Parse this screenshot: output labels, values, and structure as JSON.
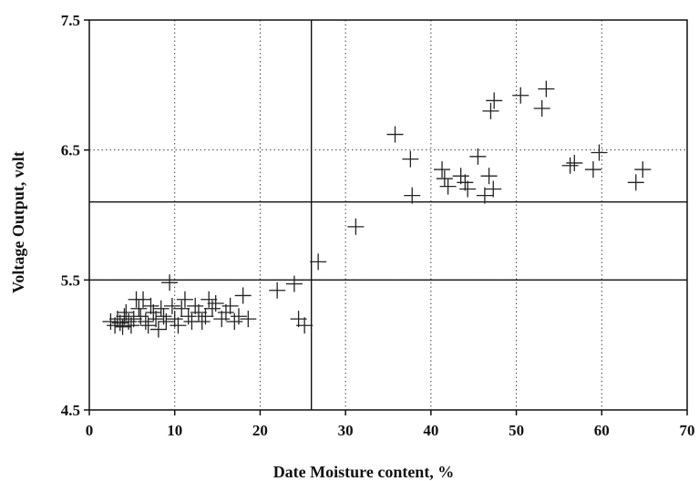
{
  "chart_data": {
    "type": "scatter",
    "title": "",
    "xlabel": "Date Moisture content, %",
    "ylabel": "Voltage Output, volt",
    "xlim": [
      0,
      70
    ],
    "ylim": [
      4.5,
      7.5
    ],
    "x_ticks": [
      "0",
      "10",
      "20",
      "30",
      "40",
      "50",
      "60",
      "70"
    ],
    "y_ticks": [
      "4.5",
      "5.5",
      "6.5",
      "7.5"
    ],
    "x_tick_values": [
      0,
      10,
      20,
      30,
      40,
      50,
      60,
      70
    ],
    "y_tick_values": [
      4.5,
      5.5,
      6.5,
      7.5
    ],
    "grid": true,
    "grid_style": "dotted",
    "marker": "plus",
    "colors": {
      "marker": "#222222",
      "reference_line": "#111111",
      "grid": "#444444"
    },
    "reference_lines": {
      "vertical_x": [
        26
      ],
      "horizontal_y": [
        5.5,
        6.1
      ]
    },
    "points": [
      [
        2.5,
        5.18
      ],
      [
        3.0,
        5.15
      ],
      [
        3.3,
        5.2
      ],
      [
        3.6,
        5.17
      ],
      [
        3.9,
        5.14
      ],
      [
        4.1,
        5.22
      ],
      [
        4.3,
        5.25
      ],
      [
        4.6,
        5.18
      ],
      [
        4.9,
        5.15
      ],
      [
        5.2,
        5.2
      ],
      [
        5.5,
        5.35
      ],
      [
        5.8,
        5.28
      ],
      [
        6.0,
        5.22
      ],
      [
        6.3,
        5.35
      ],
      [
        6.6,
        5.18
      ],
      [
        6.9,
        5.15
      ],
      [
        7.2,
        5.3
      ],
      [
        7.5,
        5.25
      ],
      [
        7.8,
        5.2
      ],
      [
        8.1,
        5.12
      ],
      [
        8.4,
        5.28
      ],
      [
        8.7,
        5.22
      ],
      [
        9.0,
        5.18
      ],
      [
        9.4,
        5.48
      ],
      [
        9.7,
        5.3
      ],
      [
        10.0,
        5.2
      ],
      [
        10.4,
        5.15
      ],
      [
        10.8,
        5.28
      ],
      [
        11.2,
        5.35
      ],
      [
        11.6,
        5.22
      ],
      [
        12.0,
        5.18
      ],
      [
        12.4,
        5.3
      ],
      [
        12.8,
        5.25
      ],
      [
        13.2,
        5.18
      ],
      [
        13.6,
        5.22
      ],
      [
        14.0,
        5.35
      ],
      [
        14.4,
        5.28
      ],
      [
        14.8,
        5.32
      ],
      [
        15.5,
        5.2
      ],
      [
        16.0,
        5.25
      ],
      [
        16.5,
        5.3
      ],
      [
        17.0,
        5.18
      ],
      [
        17.5,
        5.22
      ],
      [
        18.0,
        5.38
      ],
      [
        18.6,
        5.2
      ],
      [
        22.0,
        5.42
      ],
      [
        24.0,
        5.47
      ],
      [
        24.5,
        5.2
      ],
      [
        25.2,
        5.15
      ],
      [
        26.8,
        5.64
      ],
      [
        31.2,
        5.91
      ],
      [
        35.8,
        6.62
      ],
      [
        37.6,
        6.43
      ],
      [
        37.8,
        6.15
      ],
      [
        41.3,
        6.35
      ],
      [
        41.6,
        6.28
      ],
      [
        42.0,
        6.22
      ],
      [
        43.5,
        6.3
      ],
      [
        44.0,
        6.25
      ],
      [
        44.3,
        6.2
      ],
      [
        45.5,
        6.45
      ],
      [
        46.3,
        6.15
      ],
      [
        46.8,
        6.3
      ],
      [
        47.0,
        6.8
      ],
      [
        47.3,
        6.2
      ],
      [
        47.4,
        6.88
      ],
      [
        50.5,
        6.92
      ],
      [
        53.0,
        6.82
      ],
      [
        53.5,
        6.97
      ],
      [
        56.3,
        6.38
      ],
      [
        56.8,
        6.4
      ],
      [
        59.0,
        6.35
      ],
      [
        59.7,
        6.48
      ],
      [
        64.0,
        6.25
      ],
      [
        64.8,
        6.35
      ]
    ]
  }
}
